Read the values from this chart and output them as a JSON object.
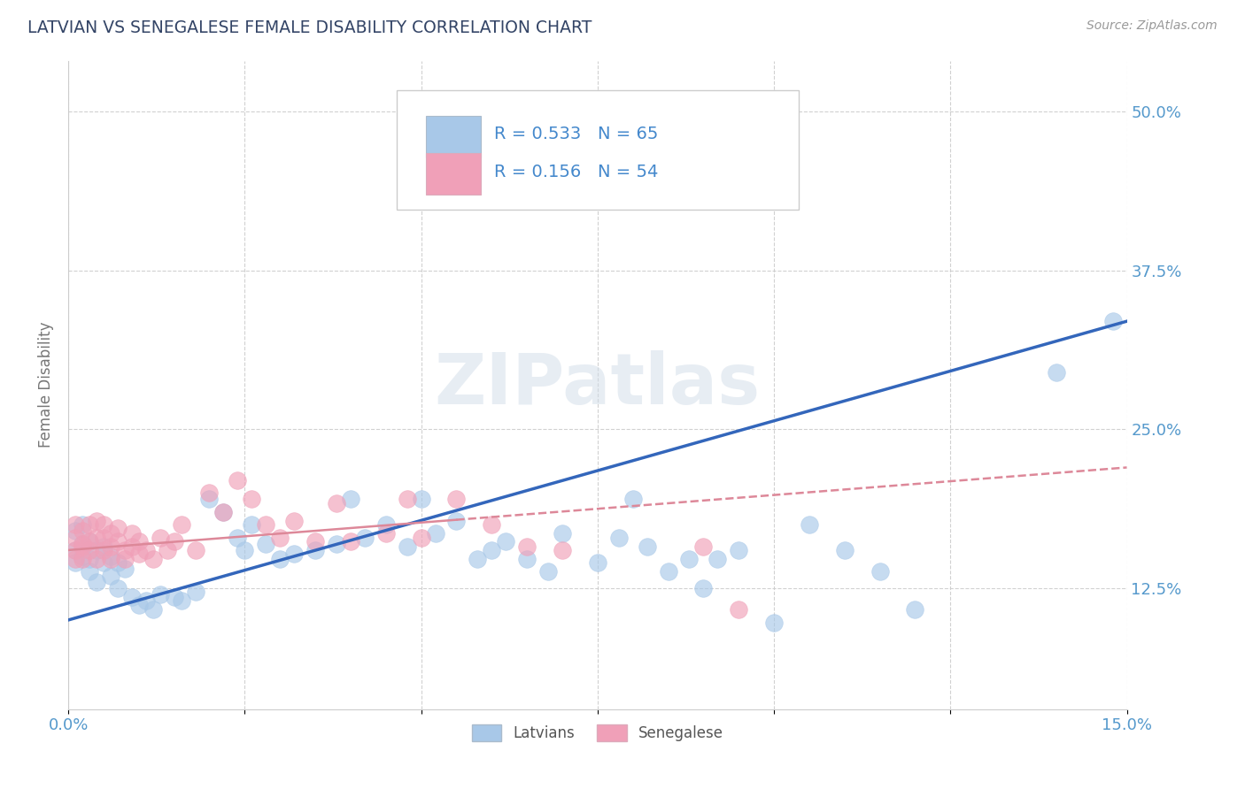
{
  "title": "LATVIAN VS SENEGALESE FEMALE DISABILITY CORRELATION CHART",
  "source": "Source: ZipAtlas.com",
  "ylabel_label": "Female Disability",
  "legend_latvians": "Latvians",
  "legend_senegalese": "Senegalese",
  "R_latvian": 0.533,
  "N_latvian": 65,
  "R_senegalese": 0.156,
  "N_senegalese": 54,
  "color_latvian": "#A8C8E8",
  "color_senegalese": "#F0A0B8",
  "line_color_latvian": "#3366BB",
  "line_color_senegalese": "#DD8899",
  "background_color": "#FFFFFF",
  "watermark": "ZIPatlas",
  "xmin": 0.0,
  "xmax": 0.15,
  "ymin": 0.03,
  "ymax": 0.54,
  "latvian_x": [
    0.001,
    0.001,
    0.001,
    0.002,
    0.002,
    0.002,
    0.003,
    0.003,
    0.003,
    0.004,
    0.004,
    0.005,
    0.005,
    0.006,
    0.006,
    0.007,
    0.007,
    0.008,
    0.009,
    0.01,
    0.011,
    0.012,
    0.013,
    0.015,
    0.016,
    0.018,
    0.02,
    0.022,
    0.024,
    0.025,
    0.026,
    0.028,
    0.03,
    0.032,
    0.035,
    0.038,
    0.04,
    0.042,
    0.045,
    0.048,
    0.05,
    0.052,
    0.055,
    0.058,
    0.06,
    0.062,
    0.065,
    0.068,
    0.07,
    0.075,
    0.078,
    0.08,
    0.082,
    0.085,
    0.088,
    0.09,
    0.092,
    0.095,
    0.1,
    0.105,
    0.11,
    0.115,
    0.12,
    0.14,
    0.148
  ],
  "latvian_y": [
    0.155,
    0.17,
    0.145,
    0.16,
    0.15,
    0.175,
    0.148,
    0.162,
    0.138,
    0.155,
    0.13,
    0.145,
    0.158,
    0.15,
    0.135,
    0.145,
    0.125,
    0.14,
    0.118,
    0.112,
    0.115,
    0.108,
    0.12,
    0.118,
    0.115,
    0.122,
    0.195,
    0.185,
    0.165,
    0.155,
    0.175,
    0.16,
    0.148,
    0.152,
    0.155,
    0.16,
    0.195,
    0.165,
    0.175,
    0.158,
    0.195,
    0.168,
    0.178,
    0.148,
    0.155,
    0.162,
    0.148,
    0.138,
    0.168,
    0.145,
    0.165,
    0.195,
    0.158,
    0.138,
    0.148,
    0.125,
    0.148,
    0.155,
    0.098,
    0.175,
    0.155,
    0.138,
    0.108,
    0.295,
    0.335
  ],
  "senegalese_x": [
    0.001,
    0.001,
    0.001,
    0.001,
    0.002,
    0.002,
    0.002,
    0.002,
    0.003,
    0.003,
    0.003,
    0.004,
    0.004,
    0.004,
    0.005,
    0.005,
    0.005,
    0.006,
    0.006,
    0.006,
    0.007,
    0.007,
    0.008,
    0.008,
    0.009,
    0.009,
    0.01,
    0.01,
    0.011,
    0.012,
    0.013,
    0.014,
    0.015,
    0.016,
    0.018,
    0.02,
    0.022,
    0.024,
    0.026,
    0.028,
    0.03,
    0.032,
    0.035,
    0.038,
    0.04,
    0.045,
    0.048,
    0.05,
    0.055,
    0.06,
    0.065,
    0.07,
    0.09,
    0.095
  ],
  "senegalese_y": [
    0.155,
    0.165,
    0.175,
    0.148,
    0.158,
    0.17,
    0.16,
    0.148,
    0.162,
    0.175,
    0.155,
    0.165,
    0.178,
    0.148,
    0.165,
    0.155,
    0.175,
    0.168,
    0.158,
    0.148,
    0.162,
    0.172,
    0.155,
    0.148,
    0.158,
    0.168,
    0.152,
    0.162,
    0.155,
    0.148,
    0.165,
    0.155,
    0.162,
    0.175,
    0.155,
    0.2,
    0.185,
    0.21,
    0.195,
    0.175,
    0.165,
    0.178,
    0.162,
    0.192,
    0.162,
    0.168,
    0.195,
    0.165,
    0.195,
    0.175,
    0.158,
    0.155,
    0.158,
    0.108
  ],
  "lv_line_x0": 0.0,
  "lv_line_x1": 0.15,
  "lv_line_y0": 0.1,
  "lv_line_y1": 0.335,
  "sn_line_x0": 0.0,
  "sn_line_x1": 0.15,
  "sn_line_y0": 0.155,
  "sn_line_y1": 0.22
}
